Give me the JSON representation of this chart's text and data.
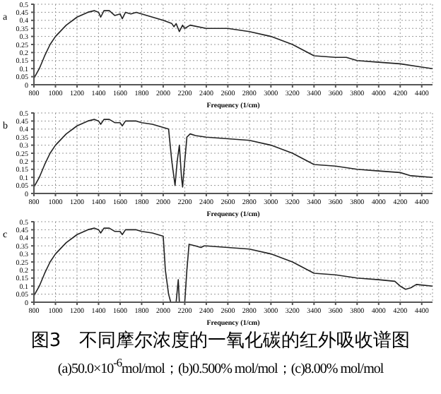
{
  "chart_data": [
    {
      "type": "line",
      "title": "a",
      "xlabel": "Frequency (1/cm)",
      "x": [
        800,
        850,
        900,
        950,
        1000,
        1100,
        1200,
        1300,
        1360,
        1400,
        1420,
        1450,
        1500,
        1550,
        1600,
        1620,
        1650,
        1700,
        1750,
        1800,
        1900,
        2000,
        2080,
        2100,
        2120,
        2150,
        2180,
        2200,
        2250,
        2400,
        2600,
        2800,
        3000,
        3200,
        3400,
        3600,
        3700,
        3800,
        4000,
        4200,
        4400,
        4500
      ],
      "series": [
        {
          "color": "#222222",
          "values": [
            0.04,
            0.1,
            0.18,
            0.25,
            0.3,
            0.37,
            0.42,
            0.45,
            0.46,
            0.45,
            0.42,
            0.46,
            0.46,
            0.43,
            0.44,
            0.41,
            0.45,
            0.44,
            0.45,
            0.44,
            0.42,
            0.4,
            0.38,
            0.36,
            0.38,
            0.33,
            0.37,
            0.35,
            0.37,
            0.35,
            0.35,
            0.33,
            0.3,
            0.25,
            0.18,
            0.17,
            0.17,
            0.15,
            0.14,
            0.13,
            0.11,
            0.1
          ]
        }
      ],
      "xlim": [
        800,
        4500
      ],
      "xticks": [
        800,
        1000,
        1200,
        1400,
        1600,
        1800,
        2000,
        2200,
        2400,
        2600,
        2800,
        3000,
        3200,
        3400,
        3600,
        3800,
        4000,
        4200,
        4400
      ],
      "ylim": [
        0,
        0.5
      ],
      "yticks": [
        0,
        0.05,
        0.1,
        0.15,
        0.2,
        0.25,
        0.3,
        0.35,
        0.4,
        0.45,
        0.5
      ],
      "grid": true,
      "marker": "none",
      "line_style": "solid"
    },
    {
      "type": "line",
      "title": "b",
      "xlabel": "Frequency (1/cm)",
      "x": [
        800,
        850,
        900,
        950,
        1000,
        1100,
        1200,
        1300,
        1360,
        1400,
        1420,
        1450,
        1500,
        1550,
        1600,
        1620,
        1650,
        1700,
        1750,
        1800,
        1900,
        2000,
        2050,
        2080,
        2110,
        2130,
        2150,
        2170,
        2180,
        2200,
        2220,
        2250,
        2300,
        2400,
        2600,
        2800,
        3000,
        3200,
        3400,
        3600,
        3800,
        4000,
        4200,
        4300,
        4500
      ],
      "series": [
        {
          "color": "#222222",
          "values": [
            0.04,
            0.1,
            0.18,
            0.25,
            0.3,
            0.37,
            0.42,
            0.45,
            0.46,
            0.45,
            0.43,
            0.46,
            0.46,
            0.44,
            0.44,
            0.42,
            0.45,
            0.45,
            0.45,
            0.44,
            0.43,
            0.41,
            0.4,
            0.2,
            0.05,
            0.2,
            0.3,
            0.1,
            0.04,
            0.2,
            0.35,
            0.37,
            0.36,
            0.35,
            0.34,
            0.33,
            0.3,
            0.25,
            0.18,
            0.17,
            0.15,
            0.14,
            0.13,
            0.11,
            0.1
          ]
        }
      ],
      "xlim": [
        800,
        4500
      ],
      "xticks": [
        800,
        1000,
        1200,
        1400,
        1600,
        1800,
        2000,
        2200,
        2400,
        2600,
        2800,
        3000,
        3200,
        3400,
        3600,
        3800,
        4000,
        4200,
        4400
      ],
      "ylim": [
        0,
        0.5
      ],
      "yticks": [
        0,
        0.05,
        0.1,
        0.15,
        0.2,
        0.25,
        0.3,
        0.35,
        0.4,
        0.45,
        0.5
      ],
      "grid": true,
      "marker": "none",
      "line_style": "solid"
    },
    {
      "type": "line",
      "title": "c",
      "xlabel": "Frequency (1/cm)",
      "x": [
        800,
        850,
        900,
        950,
        1000,
        1100,
        1200,
        1300,
        1360,
        1400,
        1420,
        1450,
        1500,
        1550,
        1600,
        1620,
        1650,
        1700,
        1750,
        1800,
        1900,
        2000,
        2020,
        2050,
        2070,
        2120,
        2140,
        2150,
        2200,
        2220,
        2240,
        2300,
        2350,
        2380,
        2400,
        2600,
        2800,
        3000,
        3200,
        3400,
        3600,
        3800,
        4000,
        4150,
        4200,
        4250,
        4300,
        4350,
        4500
      ],
      "series": [
        {
          "color": "#222222",
          "values": [
            0.04,
            0.1,
            0.18,
            0.25,
            0.3,
            0.37,
            0.42,
            0.45,
            0.46,
            0.45,
            0.43,
            0.46,
            0.46,
            0.44,
            0.44,
            0.42,
            0.45,
            0.45,
            0.45,
            0.44,
            0.43,
            0.41,
            0.2,
            0.05,
            0,
            0,
            0.14,
            0,
            0,
            0.2,
            0.36,
            0.35,
            0.34,
            0.35,
            0.35,
            0.34,
            0.33,
            0.3,
            0.25,
            0.18,
            0.17,
            0.15,
            0.14,
            0.13,
            0.1,
            0.08,
            0.09,
            0.11,
            0.1
          ]
        }
      ],
      "xlim": [
        800,
        4500
      ],
      "xticks": [
        800,
        1000,
        1200,
        1400,
        1600,
        1800,
        2000,
        2200,
        2400,
        2600,
        2800,
        3000,
        3200,
        3400,
        3600,
        3800,
        4000,
        4200,
        4400
      ],
      "ylim": [
        0,
        0.5
      ],
      "yticks": [
        0,
        0.05,
        0.1,
        0.15,
        0.2,
        0.25,
        0.3,
        0.35,
        0.4,
        0.45,
        0.5
      ],
      "grid": true,
      "marker": "none",
      "line_style": "solid",
      "annotations": [
        "图3　不同摩尔浓度的一氧化碳的红外吸收谱图",
        "(a)50.0×10$^{-6}$mol/mol；(b)0.500% mol/mol；(c)8.00% mol/mol"
      ]
    }
  ]
}
